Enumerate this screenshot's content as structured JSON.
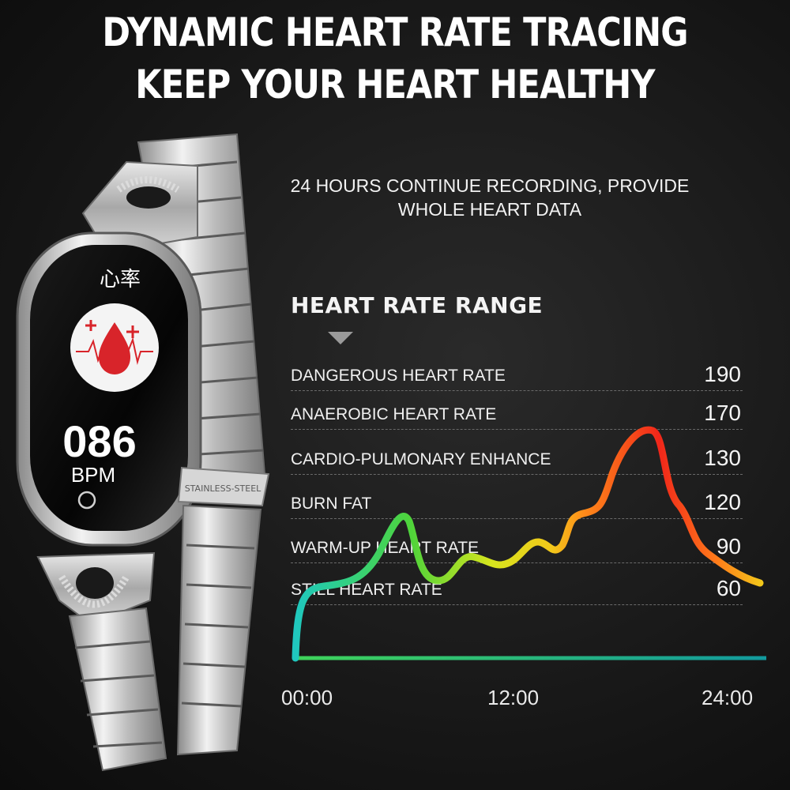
{
  "headline": {
    "line1": "DYNAMIC HEART RATE TRACING",
    "line2": "KEEP YOUR HEART HEALTHY"
  },
  "subtitle": {
    "line1": "24 HOURS CONTINUE RECORDING, PROVIDE",
    "line2": "WHOLE HEART DATA"
  },
  "range_title": "HEART RATE RANGE",
  "zones": [
    {
      "label": "DANGEROUS HEART RATE",
      "bpm": "190"
    },
    {
      "label": "ANAEROBIC HEART RATE",
      "bpm": "170"
    },
    {
      "label": "CARDIO-PULMONARY ENHANCE",
      "bpm": "130"
    },
    {
      "label": "BURN FAT",
      "bpm": "120"
    },
    {
      "label": "WARM-UP HEART RATE",
      "bpm": "90"
    },
    {
      "label": "STILL HEART RATE",
      "bpm": "60"
    }
  ],
  "time_axis": {
    "start": "00:00",
    "mid": "12:00",
    "end": "24:00"
  },
  "watch": {
    "screen_title": "心率",
    "bpm_value": "086",
    "bpm_unit": "BPM",
    "band_engraving": "STAINLESS-STEEL"
  },
  "colors": {
    "background": "#141414",
    "curve_start": "#1fc7c0",
    "curve_green": "#4fd43a",
    "curve_yellow": "#f2e21a",
    "curve_orange": "#ff8a1a",
    "curve_red": "#f0261a",
    "baseline": "#1aa6a6",
    "watch_screen_red": "#d8242a"
  }
}
